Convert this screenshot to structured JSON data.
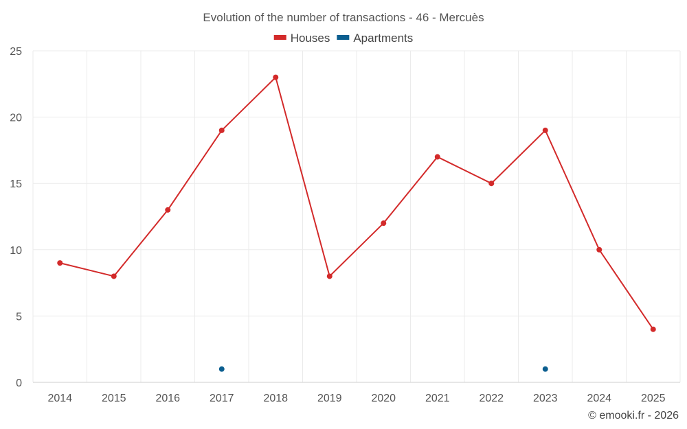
{
  "chart_data": {
    "type": "line",
    "title": "Evolution of the number of transactions - 46 - Mercuès",
    "categories": [
      "2014",
      "2015",
      "2016",
      "2017",
      "2018",
      "2019",
      "2020",
      "2021",
      "2022",
      "2023",
      "2024",
      "2025"
    ],
    "series": [
      {
        "name": "Houses",
        "color": "#d32a2a",
        "style": "line-with-markers",
        "values": [
          9,
          8,
          13,
          19,
          23,
          8,
          12,
          17,
          15,
          19,
          10,
          4
        ]
      },
      {
        "name": "Apartments",
        "color": "#0b5e8f",
        "style": "markers-only",
        "values": [
          null,
          null,
          null,
          1,
          null,
          null,
          null,
          null,
          null,
          1,
          null,
          null
        ]
      }
    ],
    "ylim": [
      0,
      25
    ],
    "yticks": [
      0,
      5,
      10,
      15,
      20,
      25
    ],
    "xlabel": "",
    "ylabel": "",
    "grid": true,
    "legend_position": "top-center"
  },
  "credit": "© emooki.fr - 2026"
}
